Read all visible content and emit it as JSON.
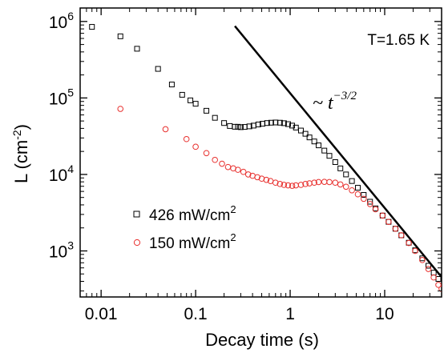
{
  "chart_data": {
    "type": "scatter",
    "title": "",
    "xlabel": "Decay time (s)",
    "ylabel_main": "L (cm",
    "ylabel_exp": "-2",
    "ylabel_close": ")",
    "x_scale": "log",
    "y_scale": "log",
    "xlim": [
      0.006,
      40
    ],
    "ylim": [
      250,
      1500000
    ],
    "grid": false,
    "legend_position": "lower-left",
    "x_ticks": [
      {
        "value": 0.01,
        "label": "0.01"
      },
      {
        "value": 0.1,
        "label": "0.1"
      },
      {
        "value": 1,
        "label": "1"
      },
      {
        "value": 10,
        "label": "10"
      }
    ],
    "y_ticks": [
      {
        "value": 1000,
        "base": "10",
        "exp": "3"
      },
      {
        "value": 10000,
        "base": "10",
        "exp": "4"
      },
      {
        "value": 100000,
        "base": "10",
        "exp": "5"
      },
      {
        "value": 1000000,
        "base": "10",
        "exp": "6"
      }
    ],
    "annotation_temperature": "T=1.65 K",
    "slope_annotation": {
      "prefix": "~ t",
      "exponent": "−3/2"
    },
    "power_law_line": {
      "exponent": -1.5,
      "x_start": 0.26,
      "y_start": 870000,
      "x_end": 40
    },
    "series": [
      {
        "name": "426 mW/cm",
        "name_sup": "2",
        "marker": "square",
        "color": "#000000",
        "points": [
          [
            0.008,
            850000
          ],
          [
            0.016,
            640000
          ],
          [
            0.024,
            440000
          ],
          [
            0.04,
            240000
          ],
          [
            0.056,
            150000
          ],
          [
            0.072,
            110000
          ],
          [
            0.088,
            93000
          ],
          [
            0.1,
            84000
          ],
          [
            0.13,
            68000
          ],
          [
            0.16,
            55000
          ],
          [
            0.2,
            47000
          ],
          [
            0.23,
            43000
          ],
          [
            0.26,
            42000
          ],
          [
            0.28,
            42000
          ],
          [
            0.3,
            41500
          ],
          [
            0.33,
            41800
          ],
          [
            0.37,
            42500
          ],
          [
            0.41,
            43500
          ],
          [
            0.46,
            45000
          ],
          [
            0.51,
            46000
          ],
          [
            0.57,
            47000
          ],
          [
            0.63,
            47500
          ],
          [
            0.7,
            47800
          ],
          [
            0.78,
            47500
          ],
          [
            0.86,
            46800
          ],
          [
            0.95,
            45500
          ],
          [
            1.05,
            43500
          ],
          [
            1.15,
            41000
          ],
          [
            1.3,
            37500
          ],
          [
            1.45,
            34000
          ],
          [
            1.6,
            30500
          ],
          [
            1.8,
            27000
          ],
          [
            2.0,
            24000
          ],
          [
            2.3,
            20500
          ],
          [
            2.6,
            17500
          ],
          [
            3.0,
            14500
          ],
          [
            3.4,
            12000
          ],
          [
            3.9,
            10000
          ],
          [
            4.5,
            8200
          ],
          [
            5.2,
            6700
          ],
          [
            6.0,
            5400
          ],
          [
            7.0,
            4400
          ],
          [
            8.0,
            3600
          ],
          [
            9.5,
            2900
          ],
          [
            11,
            2400
          ],
          [
            13,
            1950
          ],
          [
            15,
            1600
          ],
          [
            18,
            1280
          ],
          [
            21,
            1020
          ],
          [
            25,
            800
          ],
          [
            29,
            640
          ],
          [
            33,
            520
          ],
          [
            37,
            430
          ]
        ]
      },
      {
        "name": "150 mW/cm",
        "name_sup": "2",
        "marker": "circle",
        "color": "#e8302e",
        "points": [
          [
            0.016,
            72000
          ],
          [
            0.048,
            39000
          ],
          [
            0.08,
            29000
          ],
          [
            0.1,
            23000
          ],
          [
            0.13,
            19000
          ],
          [
            0.16,
            15500
          ],
          [
            0.19,
            13800
          ],
          [
            0.22,
            12500
          ],
          [
            0.25,
            12000
          ],
          [
            0.28,
            11500
          ],
          [
            0.32,
            10800
          ],
          [
            0.36,
            10000
          ],
          [
            0.4,
            9600
          ],
          [
            0.45,
            9200
          ],
          [
            0.5,
            8800
          ],
          [
            0.56,
            8500
          ],
          [
            0.62,
            8200
          ],
          [
            0.7,
            7800
          ],
          [
            0.78,
            7500
          ],
          [
            0.86,
            7300
          ],
          [
            0.95,
            7200
          ],
          [
            1.05,
            7100
          ],
          [
            1.15,
            7200
          ],
          [
            1.3,
            7300
          ],
          [
            1.45,
            7500
          ],
          [
            1.6,
            7650
          ],
          [
            1.8,
            7800
          ],
          [
            2.0,
            7950
          ],
          [
            2.3,
            8000
          ],
          [
            2.6,
            7950
          ],
          [
            3.0,
            7800
          ],
          [
            3.4,
            7400
          ],
          [
            3.9,
            6900
          ],
          [
            4.5,
            6200
          ],
          [
            5.2,
            5500
          ],
          [
            6.0,
            4800
          ],
          [
            7.0,
            4100
          ],
          [
            8.0,
            3500
          ],
          [
            9.5,
            2900
          ],
          [
            11,
            2400
          ],
          [
            13,
            1950
          ],
          [
            15,
            1600
          ],
          [
            18,
            1270
          ],
          [
            21,
            1000
          ],
          [
            25,
            760
          ],
          [
            29,
            580
          ],
          [
            33,
            450
          ],
          [
            37,
            360
          ],
          [
            40,
            320
          ]
        ]
      }
    ]
  }
}
